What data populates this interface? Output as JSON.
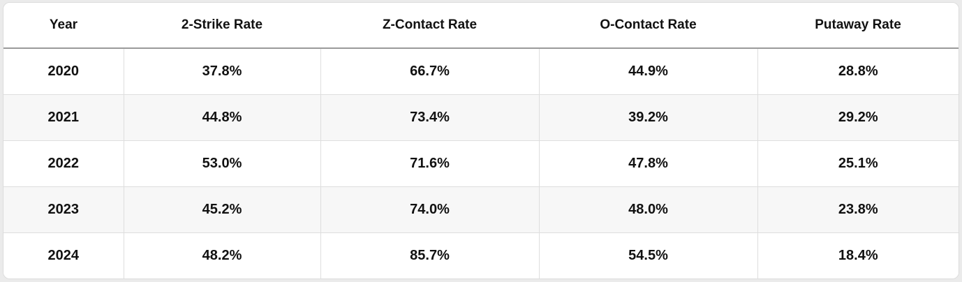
{
  "table": {
    "headers": [
      "Year",
      "2-Strike Rate",
      "Z-Contact Rate",
      "O-Contact Rate",
      "Putaway Rate"
    ],
    "rows": [
      [
        "2020",
        "37.8%",
        "66.7%",
        "44.9%",
        "28.8%"
      ],
      [
        "2021",
        "44.8%",
        "73.4%",
        "39.2%",
        "29.2%"
      ],
      [
        "2022",
        "53.0%",
        "71.6%",
        "47.8%",
        "25.1%"
      ],
      [
        "2023",
        "45.2%",
        "74.0%",
        "48.0%",
        "23.8%"
      ],
      [
        "2024",
        "48.2%",
        "85.7%",
        "54.5%",
        "18.4%"
      ]
    ]
  }
}
